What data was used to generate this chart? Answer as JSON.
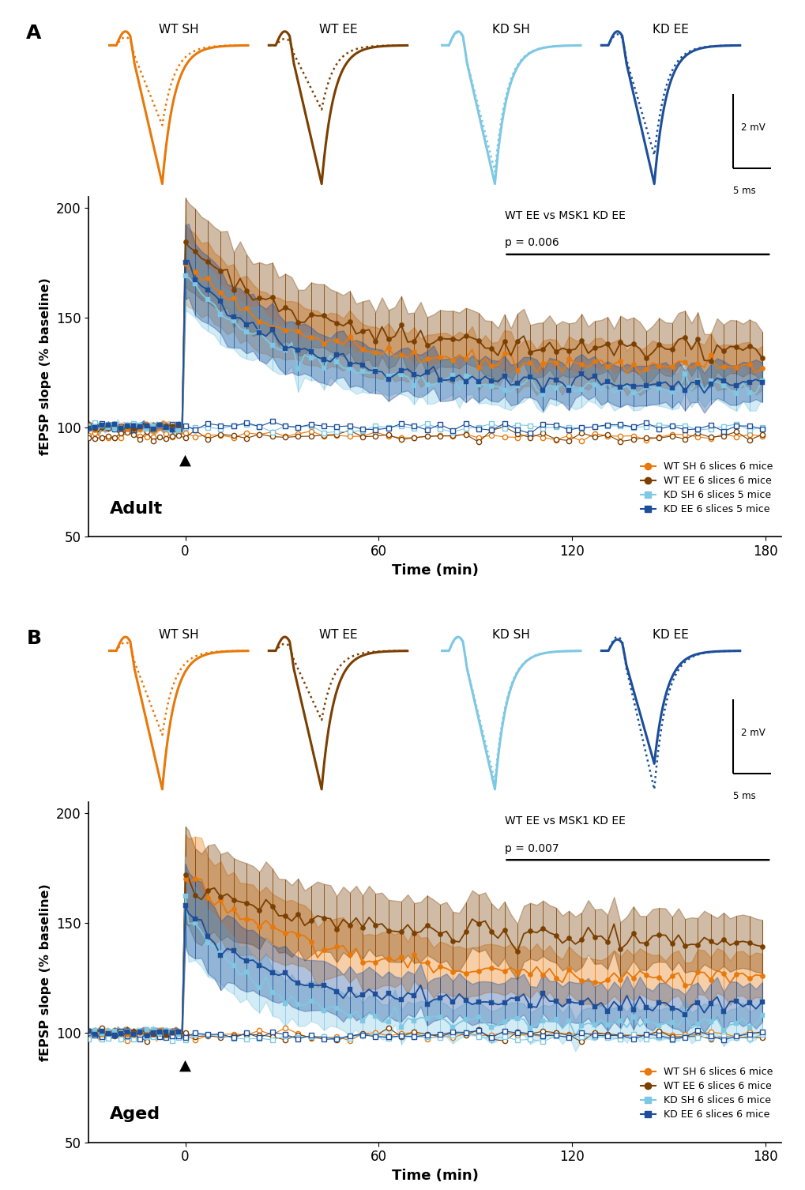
{
  "panel_A": {
    "title": "Adult",
    "label": "A",
    "annotation_line1": "WT EE vs MSK1 KD EE",
    "annotation_line2": "p = 0.006",
    "legend": [
      {
        "label": "WT SH 6 slices 6 mice",
        "color": "#E8780A",
        "marker": "o"
      },
      {
        "label": "WT EE 6 slices 6 mice",
        "color": "#7B3F00",
        "marker": "o"
      },
      {
        "label": "KD SH 6 slices 5 mice",
        "color": "#7EC8E3",
        "marker": "s"
      },
      {
        "label": "KD EE 6 slices 5 mice",
        "color": "#1C4E9A",
        "marker": "s"
      }
    ]
  },
  "panel_B": {
    "title": "Aged",
    "label": "B",
    "annotation_line1": "WT EE vs MSK1 KD EE",
    "annotation_line2": "p = 0.007",
    "legend": [
      {
        "label": "WT SH 6 slices 6 mice",
        "color": "#E8780A",
        "marker": "o"
      },
      {
        "label": "WT EE 6 slices 6 mice",
        "color": "#7B3F00",
        "marker": "o"
      },
      {
        "label": "KD SH 6 slices 6 mice",
        "color": "#7EC8E3",
        "marker": "s"
      },
      {
        "label": "KD EE 6 slices 6 mice",
        "color": "#1C4E9A",
        "marker": "s"
      }
    ]
  },
  "ylim": [
    50,
    205
  ],
  "yticks": [
    50,
    100,
    150,
    200
  ],
  "xlim": [
    -30,
    185
  ],
  "xticks": [
    0,
    60,
    120,
    180
  ],
  "xlabel": "Time (min)",
  "ylabel": "fEPSP slope (% baseline)",
  "colors": {
    "wt_sh": "#E8780A",
    "wt_ee": "#7B3F00",
    "kd_sh": "#7EC8E3",
    "kd_ee": "#1C4E9A"
  },
  "background_color": "#FFFFFF"
}
